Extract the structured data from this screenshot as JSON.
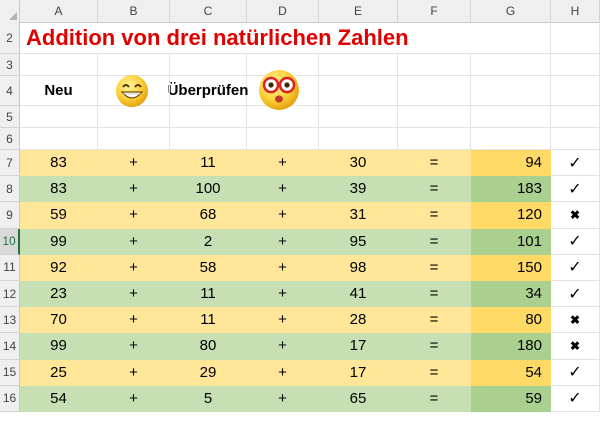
{
  "columns": [
    "A",
    "B",
    "C",
    "D",
    "E",
    "F",
    "G",
    "H"
  ],
  "title": "Addition von drei natürlichen Zahlen",
  "row4": {
    "new_label": "Neu",
    "check_label": "Überprüfen"
  },
  "rows": [
    {
      "num": "7",
      "a": "83",
      "op1": "+",
      "b": "11",
      "op2": "+",
      "c": "30",
      "eq": "=",
      "result": "94",
      "mark": "✓",
      "band": "yellow"
    },
    {
      "num": "8",
      "a": "83",
      "op1": "+",
      "b": "100",
      "op2": "+",
      "c": "39",
      "eq": "=",
      "result": "183",
      "mark": "✓",
      "band": "green"
    },
    {
      "num": "9",
      "a": "59",
      "op1": "+",
      "b": "68",
      "op2": "+",
      "c": "31",
      "eq": "=",
      "result": "120",
      "mark": "✖",
      "band": "yellow"
    },
    {
      "num": "10",
      "a": "99",
      "op1": "+",
      "b": "2",
      "op2": "+",
      "c": "95",
      "eq": "=",
      "result": "101",
      "mark": "✓",
      "band": "green"
    },
    {
      "num": "11",
      "a": "92",
      "op1": "+",
      "b": "58",
      "op2": "+",
      "c": "98",
      "eq": "=",
      "result": "150",
      "mark": "✓",
      "band": "yellow"
    },
    {
      "num": "12",
      "a": "23",
      "op1": "+",
      "b": "11",
      "op2": "+",
      "c": "41",
      "eq": "=",
      "result": "34",
      "mark": "✓",
      "band": "green"
    },
    {
      "num": "13",
      "a": "70",
      "op1": "+",
      "b": "11",
      "op2": "+",
      "c": "28",
      "eq": "=",
      "result": "80",
      "mark": "✖",
      "band": "yellow"
    },
    {
      "num": "14",
      "a": "99",
      "op1": "+",
      "b": "80",
      "op2": "+",
      "c": "17",
      "eq": "=",
      "result": "180",
      "mark": "✖",
      "band": "green"
    },
    {
      "num": "15",
      "a": "25",
      "op1": "+",
      "b": "29",
      "op2": "+",
      "c": "17",
      "eq": "=",
      "result": "54",
      "mark": "✓",
      "band": "yellow"
    },
    {
      "num": "16",
      "a": "54",
      "op1": "+",
      "b": "5",
      "op2": "+",
      "c": "65",
      "eq": "=",
      "result": "59",
      "mark": "✓",
      "band": "green"
    }
  ],
  "row_numbers_top": [
    "2",
    "3",
    "4",
    "5",
    "6"
  ],
  "selected_row": "10",
  "icons": {
    "new_button": "grinning-face-icon",
    "check_button": "nerd-face-with-glasses-icon"
  },
  "colors": {
    "title": "#e00000",
    "yellow_band": "#ffe699",
    "green_band": "#c6e0b4",
    "result_yellow": "#ffd966",
    "result_green": "#a9d08e"
  }
}
